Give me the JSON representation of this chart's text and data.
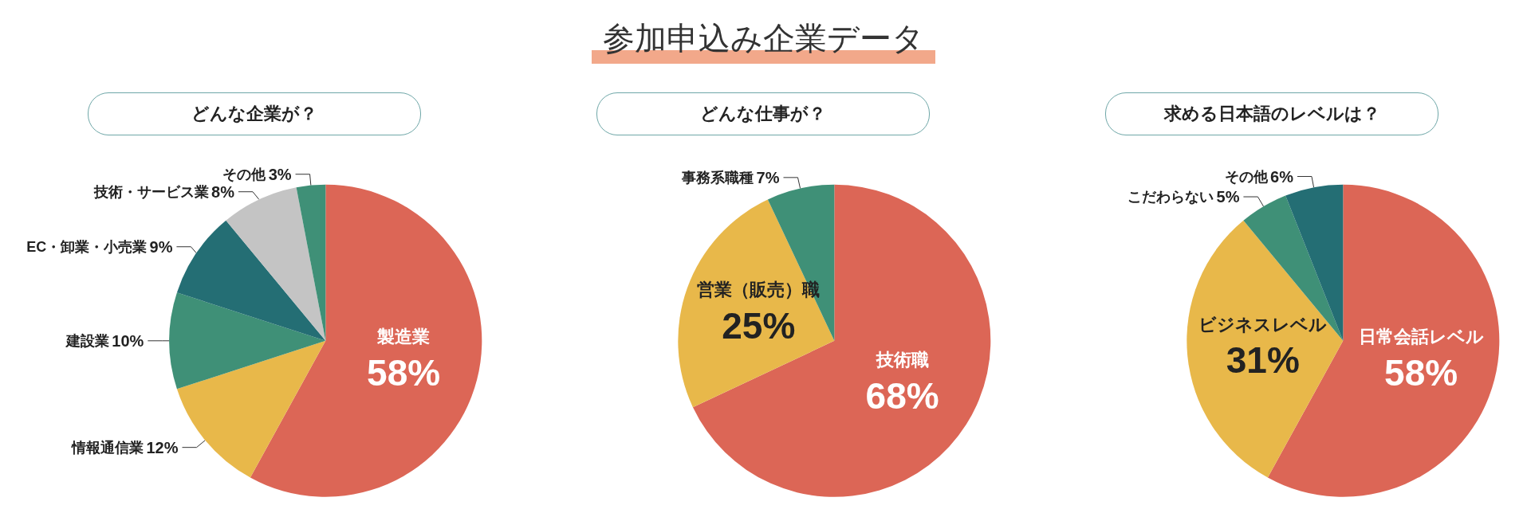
{
  "chart_data": [
    {
      "type": "pie",
      "subtitle": "どんな企業が？",
      "categories": [
        "製造業",
        "情報通信業",
        "建設業",
        "EC・卸業・小売業",
        "技術・サービス業",
        "その他"
      ],
      "values": [
        58,
        12,
        10,
        9,
        8,
        3
      ],
      "colors": [
        "#dc6656",
        "#e8b84a",
        "#3f9077",
        "#246e74",
        "#c4c4c4",
        "#3f9077"
      ],
      "value_labels": [
        "58%",
        "12%",
        "10%",
        "9%",
        "8%",
        "3%"
      ]
    },
    {
      "type": "pie",
      "title": "参加申込み企業データ",
      "subtitle": "どんな仕事が？",
      "categories": [
        "技術職",
        "営業（販売）職",
        "事務系職種"
      ],
      "values": [
        68,
        25,
        7
      ],
      "colors": [
        "#dc6656",
        "#e8b84a",
        "#3f9077"
      ],
      "value_labels": [
        "68%",
        "25%",
        "7%"
      ]
    },
    {
      "type": "pie",
      "subtitle": "求める日本語のレベルは？",
      "categories": [
        "日常会話レベル",
        "ビジネスレベル",
        "こだわらない",
        "その他"
      ],
      "values": [
        58,
        31,
        5,
        6
      ],
      "colors": [
        "#dc6656",
        "#e8b84a",
        "#3f9077",
        "#246e74"
      ],
      "value_labels": [
        "58%",
        "31%",
        "5%",
        "6%"
      ]
    }
  ]
}
